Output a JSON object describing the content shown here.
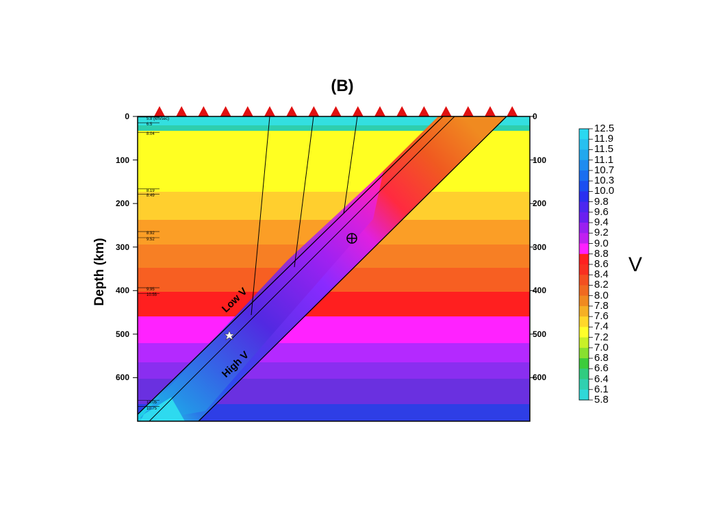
{
  "figure": {
    "panel_label": "(B)",
    "y_axis_label": "Depth (km)",
    "depth_ticks": [
      "0",
      "100",
      "200",
      "300",
      "400",
      "500",
      "600"
    ],
    "depth_tick_values": [
      0,
      100,
      200,
      300,
      400,
      500,
      600
    ],
    "max_depth_km": 700,
    "layer_notes": [
      {
        "text": "5.8 (km/sec)",
        "depth": 3
      },
      {
        "text": "6.5",
        "depth": 16
      },
      {
        "text": "8.04",
        "depth": 38
      },
      {
        "text": "8.19",
        "depth": 168
      },
      {
        "text": "8.49",
        "depth": 180
      },
      {
        "text": "8.92",
        "depth": 266
      },
      {
        "text": "9.52",
        "depth": 280
      },
      {
        "text": "9.95",
        "depth": 395
      },
      {
        "text": "10.55",
        "depth": 408
      },
      {
        "text": "10.05",
        "depth": 654
      },
      {
        "text": "10.75",
        "depth": 668
      }
    ],
    "annotations": {
      "low_v": "Low V",
      "high_v": "High V",
      "unit": "V"
    },
    "colorbar_labels": [
      "12.5",
      "11.9",
      "11.5",
      "11.1",
      "10.7",
      "10.3",
      "10.0",
      "9.8",
      "9.6",
      "9.4",
      "9.2",
      "9.0",
      "8.8",
      "8.6",
      "8.4",
      "8.2",
      "8.0",
      "7.8",
      "7.6",
      "7.4",
      "7.2",
      "7.0",
      "6.8",
      "6.6",
      "6.4",
      "6.1",
      "5.8"
    ],
    "station_count": 17
  }
}
